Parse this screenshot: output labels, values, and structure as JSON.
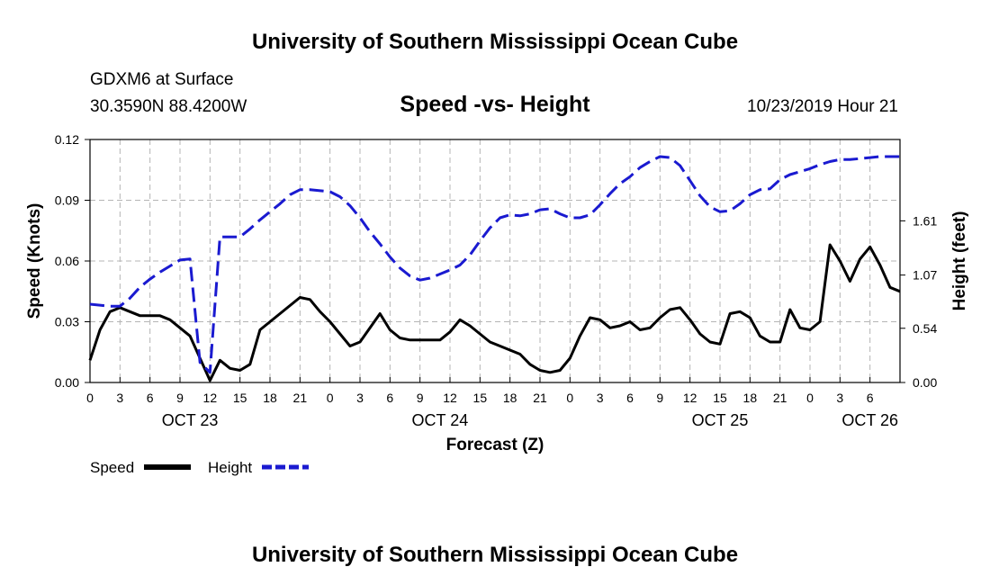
{
  "header": {
    "title": "University of Southern Mississippi Ocean Cube",
    "station": "GDXM6 at Surface",
    "coords": "30.3590N 88.4200W",
    "chart_title": "Speed -vs- Height",
    "run_time": "10/23/2019 Hour 21"
  },
  "footer": {
    "title": "University of Southern Mississippi Ocean Cube"
  },
  "legend": {
    "speed": "Speed",
    "height": "Height"
  },
  "colors": {
    "speed": "#000000",
    "height": "#1a1ad0",
    "grid": "#b4b4b4"
  },
  "chart_data": {
    "type": "line",
    "title": "Speed -vs- Height",
    "xlabel": "Forecast (Z)",
    "ylabel_left": "Speed (Knots)",
    "ylabel_right": "Height (feet)",
    "x_range_hours": [
      0,
      81
    ],
    "x_tick_labels": [
      "0",
      "3",
      "6",
      "9",
      "12",
      "15",
      "18",
      "21",
      "0",
      "3",
      "6",
      "9",
      "12",
      "15",
      "18",
      "21",
      "0",
      "3",
      "6",
      "9",
      "12",
      "15",
      "18",
      "21",
      "0",
      "3",
      "6"
    ],
    "x_tick_hours": [
      0,
      3,
      6,
      9,
      12,
      15,
      18,
      21,
      24,
      27,
      30,
      33,
      36,
      39,
      42,
      45,
      48,
      51,
      54,
      57,
      60,
      63,
      66,
      69,
      72,
      75,
      78
    ],
    "day_labels": [
      {
        "text": "OCT 23",
        "hour": 10
      },
      {
        "text": "OCT 24",
        "hour": 35
      },
      {
        "text": "OCT 25",
        "hour": 63
      },
      {
        "text": "OCT 26",
        "hour": 78
      }
    ],
    "ylim_left": [
      0,
      0.12
    ],
    "yticks_left": [
      "0.00",
      "0.03",
      "0.06",
      "0.09",
      "0.12"
    ],
    "ylim_right": [
      0,
      2.42
    ],
    "yticks_right": [
      "0.00",
      "0.54",
      "1.07",
      "1.61"
    ],
    "grid": true,
    "legend_position": "bottom-left",
    "series": [
      {
        "name": "Speed",
        "axis": "left",
        "style": "solid",
        "x": [
          0,
          1,
          2,
          3,
          4,
          5,
          6,
          7,
          8,
          9,
          10,
          11,
          12,
          13,
          14,
          15,
          16,
          17,
          18,
          19,
          20,
          21,
          22,
          23,
          24,
          25,
          26,
          27,
          28,
          29,
          30,
          31,
          32,
          33,
          34,
          35,
          36,
          37,
          38,
          39,
          40,
          41,
          42,
          43,
          44,
          45,
          46,
          47,
          48,
          49,
          50,
          51,
          52,
          53,
          54,
          55,
          56,
          57,
          58,
          59,
          60,
          61,
          62,
          63,
          64,
          65,
          66,
          67,
          68,
          69,
          70,
          71,
          72,
          73,
          74,
          75,
          76,
          77,
          78,
          79,
          80,
          81
        ],
        "values": [
          0.011,
          0.026,
          0.035,
          0.037,
          0.035,
          0.033,
          0.033,
          0.033,
          0.031,
          0.027,
          0.023,
          0.012,
          0.001,
          0.011,
          0.007,
          0.006,
          0.009,
          0.026,
          0.03,
          0.034,
          0.038,
          0.042,
          0.041,
          0.035,
          0.03,
          0.024,
          0.018,
          0.02,
          0.027,
          0.034,
          0.026,
          0.022,
          0.021,
          0.021,
          0.021,
          0.021,
          0.025,
          0.031,
          0.028,
          0.024,
          0.02,
          0.018,
          0.016,
          0.014,
          0.009,
          0.006,
          0.005,
          0.006,
          0.012,
          0.023,
          0.032,
          0.031,
          0.027,
          0.028,
          0.03,
          0.026,
          0.027,
          0.032,
          0.036,
          0.037,
          0.031,
          0.024,
          0.02,
          0.019,
          0.034,
          0.035,
          0.032,
          0.023,
          0.02,
          0.02,
          0.036,
          0.027,
          0.026,
          0.03,
          0.068,
          0.06,
          0.05,
          0.061,
          0.067,
          0.058,
          0.047,
          0.045
        ]
      },
      {
        "name": "Height",
        "axis": "right",
        "style": "dashed",
        "x": [
          0,
          1,
          2,
          3,
          4,
          5,
          6,
          7,
          8,
          9,
          10,
          11,
          12,
          13,
          14,
          15,
          16,
          17,
          18,
          19,
          20,
          21,
          22,
          23,
          24,
          25,
          26,
          27,
          28,
          29,
          30,
          31,
          32,
          33,
          34,
          35,
          36,
          37,
          38,
          39,
          40,
          41,
          42,
          43,
          44,
          45,
          46,
          47,
          48,
          49,
          50,
          51,
          52,
          53,
          54,
          55,
          56,
          57,
          58,
          59,
          60,
          61,
          62,
          63,
          64,
          65,
          66,
          67,
          68,
          69,
          70,
          71,
          72,
          73,
          74,
          75,
          76,
          77,
          78,
          79,
          80,
          81
        ],
        "values": [
          0.78,
          0.77,
          0.76,
          0.76,
          0.84,
          0.95,
          1.03,
          1.1,
          1.16,
          1.22,
          1.23,
          0.2,
          0.1,
          1.45,
          1.45,
          1.45,
          1.53,
          1.62,
          1.7,
          1.78,
          1.87,
          1.92,
          1.92,
          1.91,
          1.9,
          1.85,
          1.76,
          1.64,
          1.5,
          1.38,
          1.25,
          1.14,
          1.06,
          1.02,
          1.04,
          1.08,
          1.12,
          1.17,
          1.27,
          1.41,
          1.54,
          1.64,
          1.67,
          1.66,
          1.68,
          1.72,
          1.73,
          1.68,
          1.64,
          1.64,
          1.67,
          1.77,
          1.88,
          1.98,
          2.05,
          2.14,
          2.2,
          2.25,
          2.24,
          2.16,
          2.01,
          1.86,
          1.75,
          1.7,
          1.71,
          1.78,
          1.87,
          1.92,
          1.93,
          2.02,
          2.07,
          2.1,
          2.13,
          2.17,
          2.2,
          2.22,
          2.22,
          2.23,
          2.24,
          2.25,
          2.25,
          2.25
        ]
      }
    ]
  }
}
